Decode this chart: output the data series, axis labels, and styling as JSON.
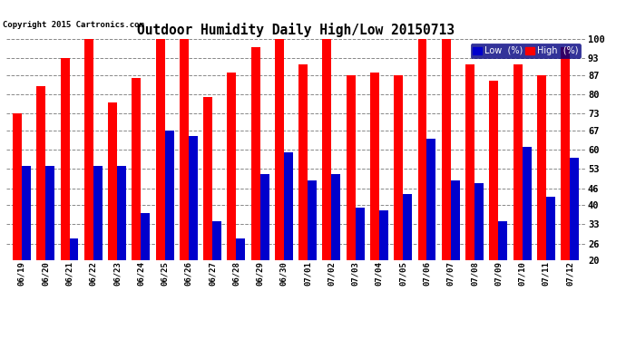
{
  "title": "Outdoor Humidity Daily High/Low 20150713",
  "copyright": "Copyright 2015 Cartronics.com",
  "dates": [
    "06/19",
    "06/20",
    "06/21",
    "06/22",
    "06/23",
    "06/24",
    "06/25",
    "06/26",
    "06/27",
    "06/28",
    "06/29",
    "06/30",
    "07/01",
    "07/02",
    "07/03",
    "07/04",
    "07/05",
    "07/06",
    "07/07",
    "07/08",
    "07/09",
    "07/10",
    "07/11",
    "07/12"
  ],
  "high_values": [
    73,
    83,
    93,
    100,
    77,
    86,
    100,
    100,
    79,
    88,
    97,
    100,
    91,
    100,
    87,
    88,
    87,
    100,
    100,
    91,
    85,
    91,
    87,
    97
  ],
  "low_values": [
    54,
    54,
    28,
    54,
    54,
    37,
    67,
    65,
    34,
    28,
    51,
    59,
    49,
    51,
    39,
    38,
    44,
    64,
    49,
    48,
    34,
    61,
    43,
    57
  ],
  "high_color": "#ff0000",
  "low_color": "#0000cc",
  "bg_color": "#ffffff",
  "grid_color": "#888888",
  "yticks": [
    20,
    26,
    33,
    40,
    46,
    53,
    60,
    67,
    73,
    80,
    87,
    93,
    100
  ],
  "ymin": 20,
  "ymax": 100,
  "bar_width": 0.38,
  "legend_low_label": "Low  (%)",
  "legend_high_label": "High  (%)"
}
